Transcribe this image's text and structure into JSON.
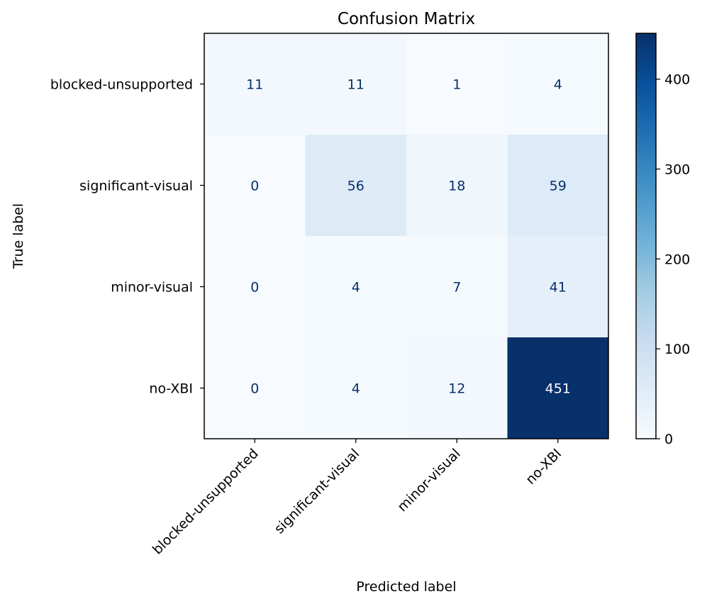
{
  "chart_data": {
    "type": "heatmap",
    "title": "Confusion Matrix",
    "xlabel": "Predicted label",
    "ylabel": "True label",
    "row_labels": [
      "blocked-unsupported",
      "significant-visual",
      "minor-visual",
      "no-XBI"
    ],
    "col_labels": [
      "blocked-unsupported",
      "significant-visual",
      "minor-visual",
      "no-XBI"
    ],
    "matrix": [
      [
        11,
        11,
        1,
        4
      ],
      [
        0,
        56,
        18,
        59
      ],
      [
        0,
        4,
        7,
        41
      ],
      [
        0,
        4,
        12,
        451
      ]
    ],
    "colormap": "Blues",
    "colorbar": {
      "range": [
        0,
        451
      ],
      "ticks": [
        0,
        100,
        200,
        300,
        400
      ]
    },
    "colors": {
      "dark_text": "#08306b",
      "light_text": "#ffffff"
    }
  }
}
